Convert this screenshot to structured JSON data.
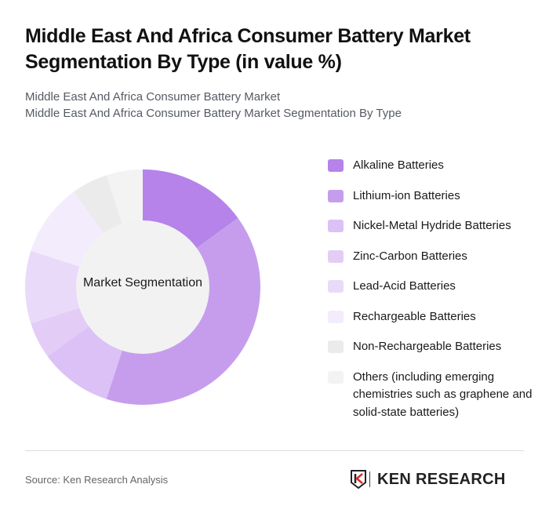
{
  "header": {
    "title": "Middle East And Africa Consumer Battery Market Segmentation By Type (in value %)",
    "subtitle_line1": "Middle East And Africa Consumer Battery Market",
    "subtitle_line2": "Middle East And Africa Consumer Battery Market Segmentation By Type"
  },
  "chart_data": {
    "type": "pie",
    "variant": "donut",
    "title": "Middle East And Africa Consumer Battery Market Segmentation By Type (in value %)",
    "center_label": "Market Segmentation",
    "legend_position": "right",
    "categories": [
      "Alkaline Batteries",
      "Lithium-ion Batteries",
      "Nickel-Metal Hydride Batteries",
      "Zinc-Carbon Batteries",
      "Lead-Acid Batteries",
      "Rechargeable Batteries",
      "Non-Rechargeable Batteries",
      "Others (including emerging chemistries such as graphene and solid-state batteries)"
    ],
    "values": [
      15,
      40,
      10,
      5,
      10,
      10,
      5,
      5
    ],
    "colors": [
      "#b583ea",
      "#c69ded",
      "#dbc1f5",
      "#e3cdf6",
      "#e9dafa",
      "#f3ecfc",
      "#ebebeb",
      "#f3f3f3"
    ]
  },
  "legend": {
    "items": [
      {
        "label": "Alkaline Batteries",
        "color": "#b583ea"
      },
      {
        "label": "Lithium-ion Batteries",
        "color": "#c69ded"
      },
      {
        "label": "Nickel-Metal Hydride Batteries",
        "color": "#dbc1f5"
      },
      {
        "label": "Zinc-Carbon Batteries",
        "color": "#e3cdf6"
      },
      {
        "label": "Lead-Acid Batteries",
        "color": "#e9dafa"
      },
      {
        "label": "Rechargeable Batteries",
        "color": "#f3ecfc"
      },
      {
        "label": "Non-Rechargeable Batteries",
        "color": "#ebebeb"
      },
      {
        "label": "Others (including emerging chemistries such as graphene and solid-state batteries)",
        "color": "#f3f3f3"
      }
    ]
  },
  "footer": {
    "source": "Source: Ken Research Analysis",
    "logo_text": "KEN RESEARCH"
  }
}
